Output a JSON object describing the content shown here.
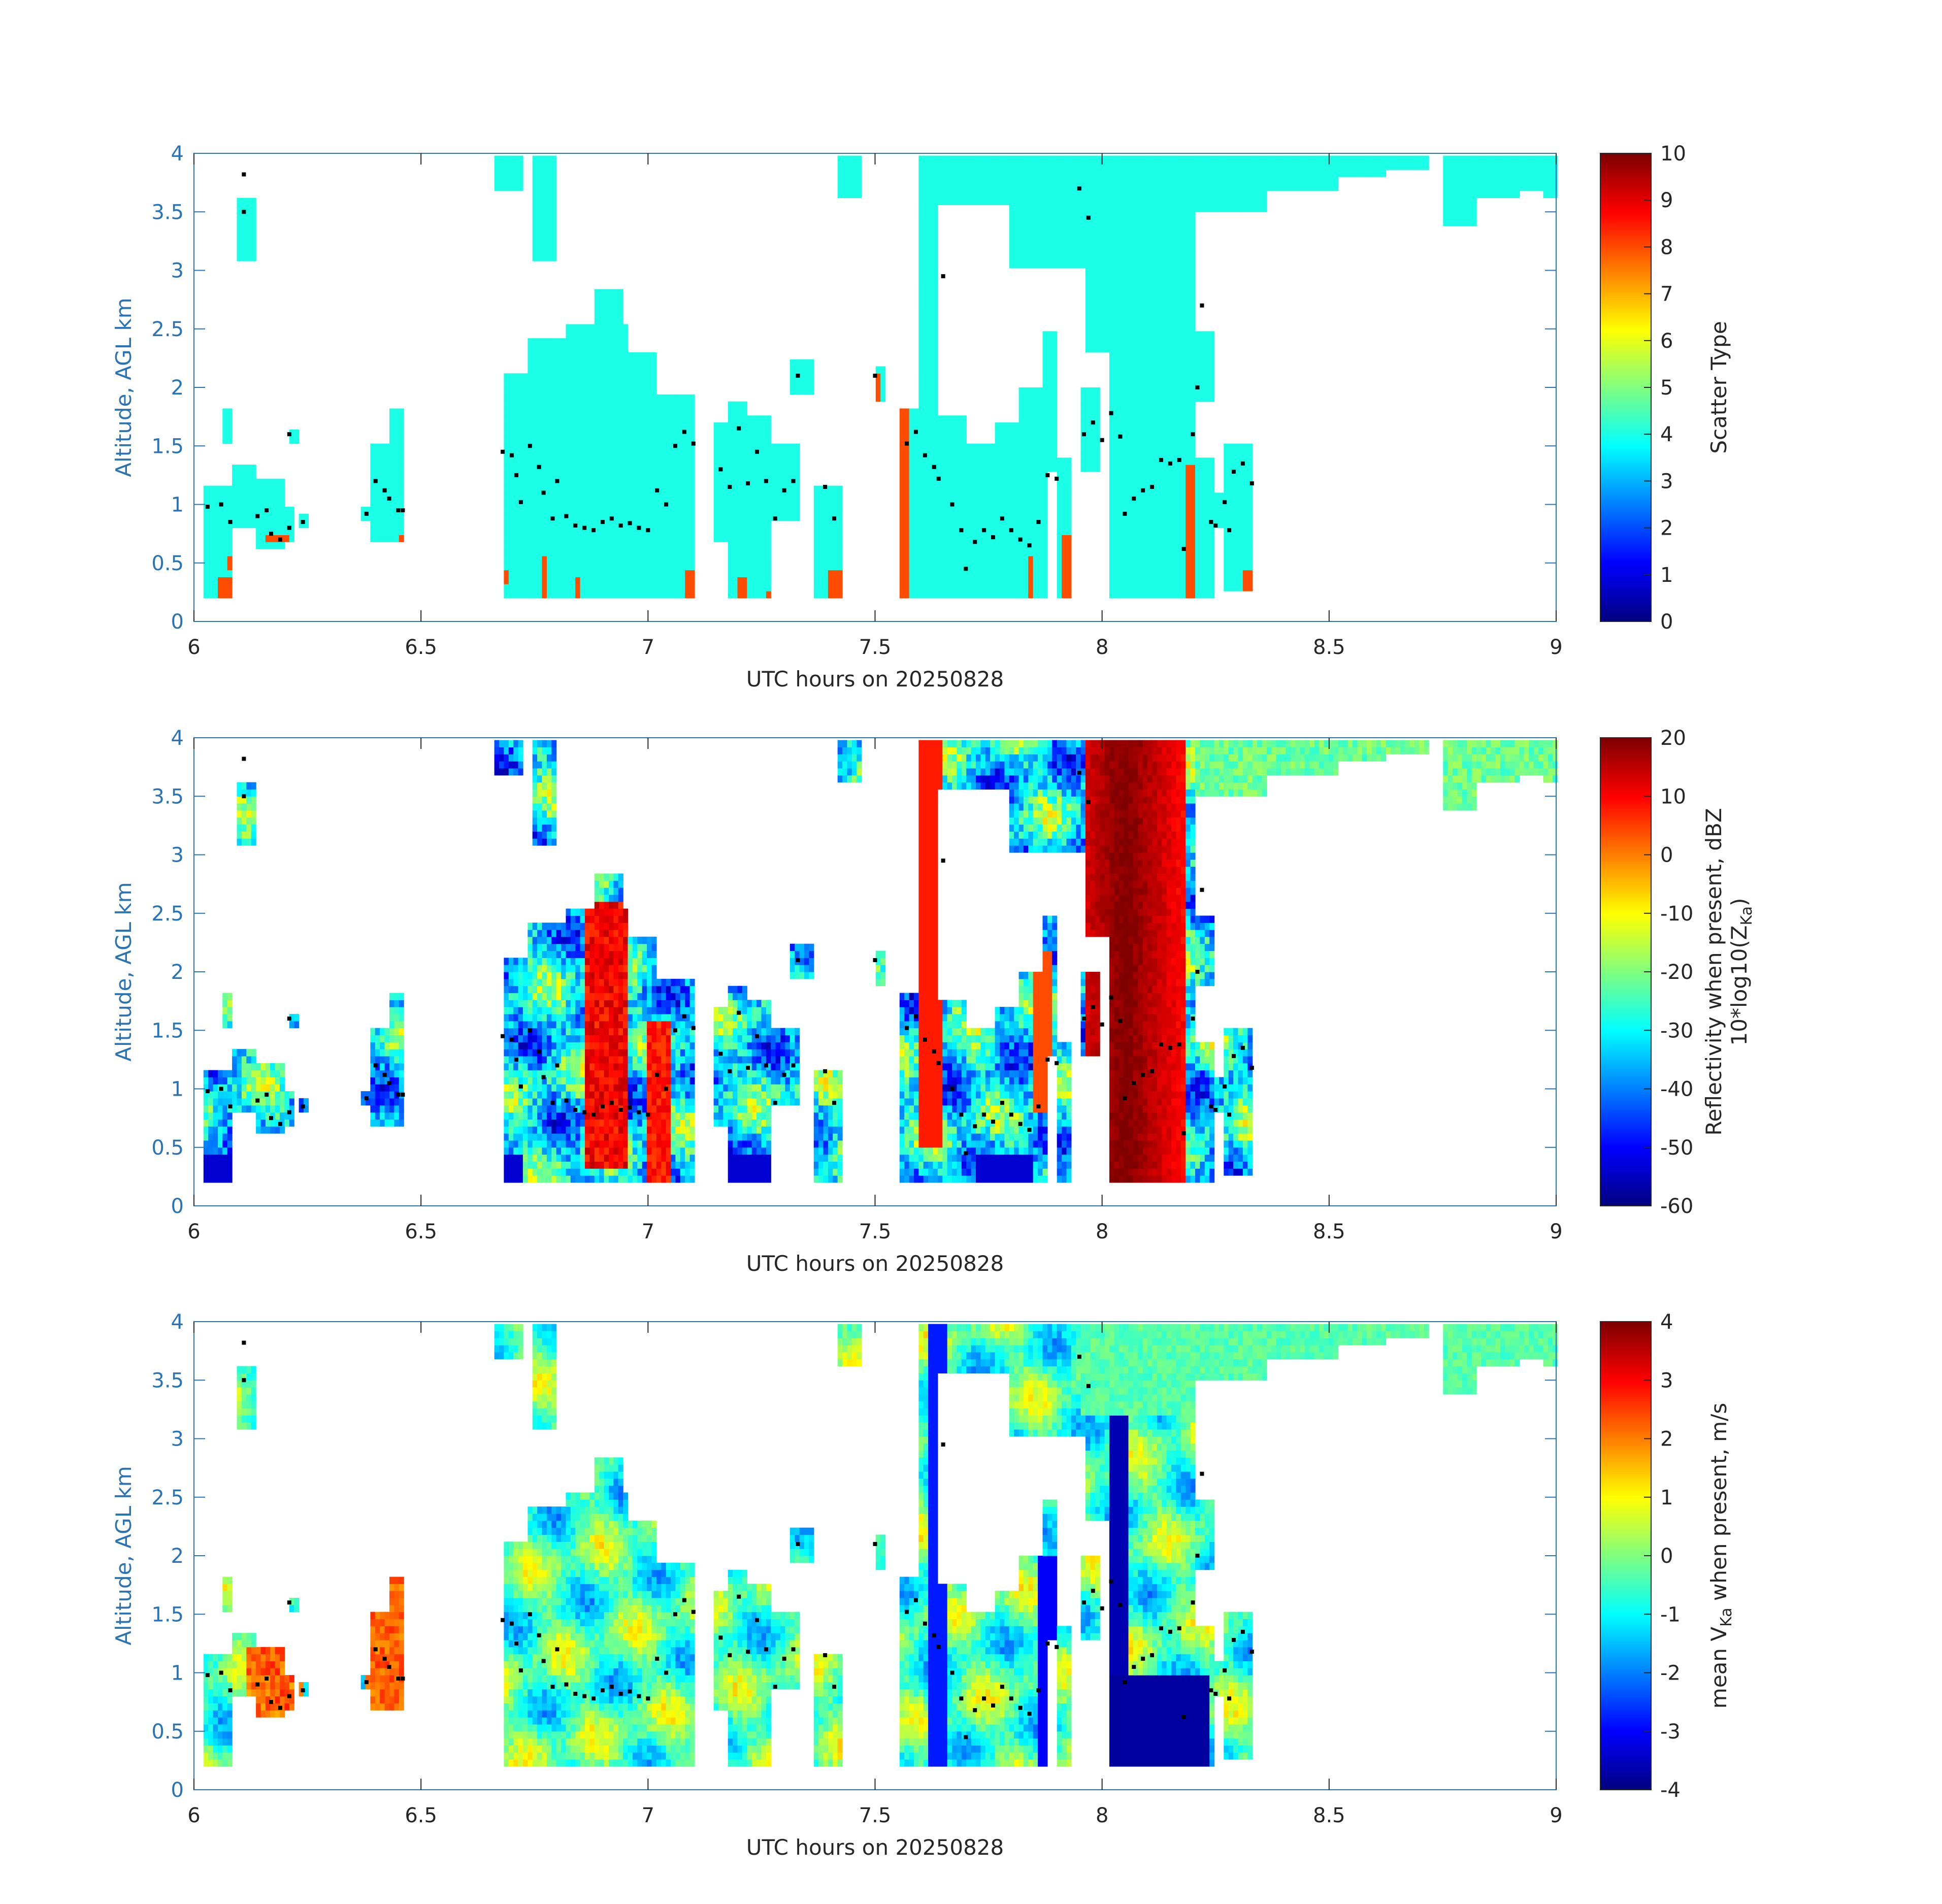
{
  "chart_data": [
    {
      "type": "heatmap",
      "title": "",
      "xlabel": "UTC hours on 20250828",
      "ylabel": "Altitude, AGL km",
      "xlim": [
        6,
        9
      ],
      "ylim": [
        0,
        4
      ],
      "x_ticks": [
        "6",
        "6.5",
        "7",
        "7.5",
        "8",
        "8.5",
        "9"
      ],
      "y_ticks": [
        "0",
        "0.5",
        "1",
        "1.5",
        "2",
        "2.5",
        "3",
        "3.5",
        "4"
      ],
      "colorbar": {
        "label": "Scatter Type",
        "label_line2": "",
        "range": [
          0,
          10
        ],
        "ticks": [
          "0",
          "1",
          "2",
          "3",
          "4",
          "5",
          "6",
          "7",
          "8",
          "9",
          "10"
        ],
        "colormap": "jet"
      },
      "dominant_value": 4,
      "secondary_value": 8
    },
    {
      "type": "heatmap",
      "title": "",
      "xlabel": "UTC hours on 20250828",
      "ylabel": "Altitude, AGL km",
      "xlim": [
        6,
        9
      ],
      "ylim": [
        0,
        4
      ],
      "x_ticks": [
        "6",
        "6.5",
        "7",
        "7.5",
        "8",
        "8.5",
        "9"
      ],
      "y_ticks": [
        "0",
        "0.5",
        "1",
        "1.5",
        "2",
        "2.5",
        "3",
        "3.5",
        "4"
      ],
      "colorbar": {
        "label": "Reflectivity when present, dBZ",
        "label_line2": "10*log10(Z",
        "label_line2_sub": "Ka",
        "label_line2_end": ")",
        "range": [
          -60,
          20
        ],
        "ticks": [
          "-60",
          "-50",
          "-40",
          "-30",
          "-20",
          "-10",
          "0",
          "10",
          "20"
        ],
        "colormap": "jet"
      }
    },
    {
      "type": "heatmap",
      "title": "",
      "xlabel": "UTC hours on 20250828",
      "ylabel": "Altitude, AGL km",
      "xlim": [
        6,
        9
      ],
      "ylim": [
        0,
        4
      ],
      "x_ticks": [
        "6",
        "6.5",
        "7",
        "7.5",
        "8",
        "8.5",
        "9"
      ],
      "y_ticks": [
        "0",
        "0.5",
        "1",
        "1.5",
        "2",
        "2.5",
        "3",
        "3.5",
        "4"
      ],
      "colorbar": {
        "label": "mean V",
        "label_sub": "Ka",
        "label_end": " when present, m/s",
        "range": [
          -4,
          4
        ],
        "ticks": [
          "-4",
          "-3",
          "-2",
          "-1",
          "0",
          "1",
          "2",
          "3",
          "4"
        ],
        "colormap": "jet"
      }
    }
  ],
  "cloud_base_points": [
    [
      6.03,
      0.98
    ],
    [
      6.06,
      1.0
    ],
    [
      6.08,
      0.85
    ],
    [
      6.11,
      3.82
    ],
    [
      6.11,
      3.5
    ],
    [
      6.14,
      0.9
    ],
    [
      6.16,
      0.95
    ],
    [
      6.17,
      0.75
    ],
    [
      6.19,
      0.7
    ],
    [
      6.21,
      1.6
    ],
    [
      6.21,
      0.8
    ],
    [
      6.24,
      0.85
    ],
    [
      6.38,
      0.92
    ],
    [
      6.4,
      1.2
    ],
    [
      6.42,
      1.12
    ],
    [
      6.43,
      1.05
    ],
    [
      6.45,
      0.95
    ],
    [
      6.46,
      0.95
    ],
    [
      6.68,
      1.45
    ],
    [
      6.7,
      1.42
    ],
    [
      6.71,
      1.25
    ],
    [
      6.72,
      1.02
    ],
    [
      6.74,
      1.5
    ],
    [
      6.76,
      1.32
    ],
    [
      6.77,
      1.1
    ],
    [
      6.79,
      0.88
    ],
    [
      6.8,
      1.2
    ],
    [
      6.82,
      0.9
    ],
    [
      6.84,
      0.82
    ],
    [
      6.86,
      0.8
    ],
    [
      6.88,
      0.78
    ],
    [
      6.9,
      0.85
    ],
    [
      6.92,
      0.88
    ],
    [
      6.94,
      0.82
    ],
    [
      6.96,
      0.84
    ],
    [
      6.98,
      0.8
    ],
    [
      7.0,
      0.78
    ],
    [
      7.02,
      1.12
    ],
    [
      7.04,
      1.0
    ],
    [
      7.06,
      1.5
    ],
    [
      7.08,
      1.62
    ],
    [
      7.1,
      1.52
    ],
    [
      7.16,
      1.3
    ],
    [
      7.18,
      1.15
    ],
    [
      7.2,
      1.65
    ],
    [
      7.22,
      1.18
    ],
    [
      7.24,
      1.45
    ],
    [
      7.26,
      1.2
    ],
    [
      7.28,
      0.88
    ],
    [
      7.3,
      1.12
    ],
    [
      7.32,
      1.2
    ],
    [
      7.33,
      2.1
    ],
    [
      7.39,
      1.15
    ],
    [
      7.41,
      0.88
    ],
    [
      7.5,
      2.1
    ],
    [
      7.57,
      1.52
    ],
    [
      7.59,
      1.62
    ],
    [
      7.61,
      1.42
    ],
    [
      7.63,
      1.32
    ],
    [
      7.64,
      1.22
    ],
    [
      7.65,
      2.95
    ],
    [
      7.67,
      1.0
    ],
    [
      7.69,
      0.78
    ],
    [
      7.7,
      0.45
    ],
    [
      7.72,
      0.68
    ],
    [
      7.74,
      0.78
    ],
    [
      7.76,
      0.72
    ],
    [
      7.78,
      0.88
    ],
    [
      7.8,
      0.78
    ],
    [
      7.82,
      0.7
    ],
    [
      7.84,
      0.65
    ],
    [
      7.86,
      0.85
    ],
    [
      7.88,
      1.25
    ],
    [
      7.9,
      1.22
    ],
    [
      7.95,
      3.7
    ],
    [
      7.97,
      3.45
    ],
    [
      7.96,
      1.6
    ],
    [
      7.98,
      1.7
    ],
    [
      8.0,
      1.55
    ],
    [
      8.02,
      1.78
    ],
    [
      8.04,
      1.58
    ],
    [
      8.05,
      0.92
    ],
    [
      8.07,
      1.05
    ],
    [
      8.09,
      1.12
    ],
    [
      8.11,
      1.15
    ],
    [
      8.13,
      1.38
    ],
    [
      8.15,
      1.35
    ],
    [
      8.17,
      1.38
    ],
    [
      8.18,
      0.62
    ],
    [
      8.2,
      1.6
    ],
    [
      8.21,
      2.0
    ],
    [
      8.22,
      2.7
    ],
    [
      8.24,
      0.85
    ],
    [
      8.25,
      0.82
    ],
    [
      8.27,
      1.02
    ],
    [
      8.28,
      0.78
    ],
    [
      8.29,
      1.28
    ],
    [
      8.31,
      1.35
    ],
    [
      8.33,
      1.18
    ]
  ]
}
